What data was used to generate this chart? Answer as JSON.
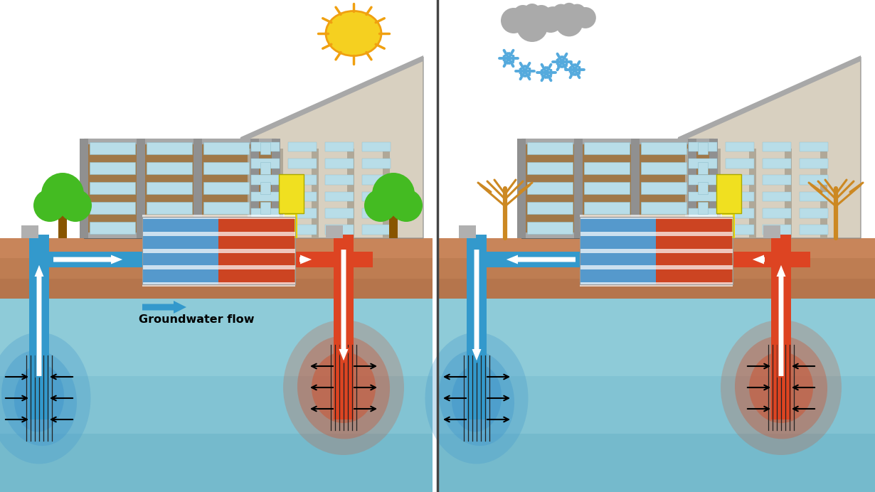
{
  "bg": "#ffffff",
  "soil_color": "#c8855a",
  "soil_bottom_color": "#b07550",
  "water_top": "#8ecbd8",
  "water_mid": "#70b8cc",
  "water_bot": "#5aa8bc",
  "cold_blob": "#4499cc",
  "warm_blob": "#cc5533",
  "pipe_blue": "#3399cc",
  "pipe_red": "#dd4422",
  "build_brown": "#a07848",
  "build_gray": "#c8c0b0",
  "build_gray2": "#d8d0c0",
  "build_col_gray": "#909090",
  "build_top_gray": "#a8a8a8",
  "window_blue": "#b8dde8",
  "window_frame": "#90c0cc",
  "yellow_box": "#f0e020",
  "sun_inner": "#f5d020",
  "sun_ray": "#f0a010",
  "cloud_gray": "#aaaaaa",
  "snow_blue": "#55aadd",
  "tree_green": "#44bb22",
  "tree_brown_summer": "#885500",
  "tree_orange": "#cc8822",
  "gw_text": "Groundwater flow",
  "divider": "#444444",
  "screen_color": "#222222",
  "arrow_outline": "#3399cc",
  "arrow_outline_red": "#dd4422"
}
